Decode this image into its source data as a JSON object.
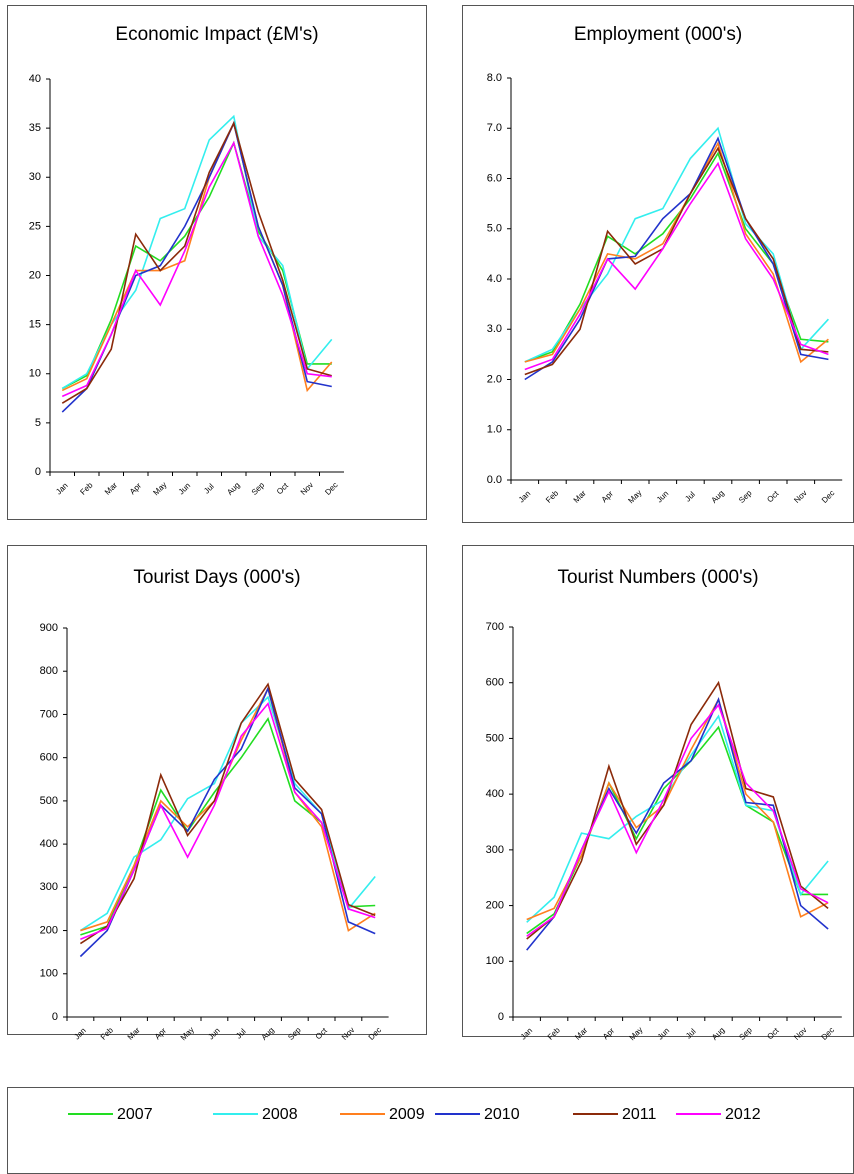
{
  "chart_data": [
    {
      "type": "line",
      "title": "Economic Impact (£M's)",
      "categories": [
        "Jan",
        "Feb",
        "Mar",
        "Apr",
        "May",
        "Jun",
        "Jul",
        "Aug",
        "Sep",
        "Oct",
        "Nov",
        "Dec"
      ],
      "ylim": [
        0,
        40
      ],
      "yticks": [
        0,
        5,
        10,
        15,
        20,
        25,
        30,
        35,
        40
      ],
      "series": [
        {
          "values": [
            8.5,
            9.8,
            15.5,
            23,
            21.5,
            24,
            28,
            33.5,
            24.5,
            20.5,
            11,
            11
          ]
        },
        {
          "values": [
            8.5,
            10,
            15,
            18.5,
            25.8,
            26.8,
            33.8,
            36.2,
            24,
            21,
            10.5,
            13.5
          ]
        },
        {
          "values": [
            8.3,
            9.5,
            15,
            20.5,
            20.5,
            21.5,
            30,
            35.5,
            25,
            19,
            8.3,
            11.2
          ]
        },
        {
          "values": [
            6.1,
            8.5,
            14,
            20,
            21,
            25,
            30,
            35.5,
            25,
            19,
            9.2,
            8.7
          ]
        },
        {
          "values": [
            7,
            8.5,
            12.5,
            24.2,
            20.5,
            23,
            30.5,
            35.5,
            26.5,
            19.5,
            10.5,
            9.8
          ]
        },
        {
          "values": [
            7.7,
            8.8,
            14,
            20.5,
            17,
            22.5,
            29,
            33.5,
            24,
            18,
            10,
            9.7
          ]
        }
      ]
    },
    {
      "type": "line",
      "title": "Employment (000's)",
      "categories": [
        "Jan",
        "Feb",
        "Mar",
        "Apr",
        "May",
        "Jun",
        "Jul",
        "Aug",
        "Sep",
        "Oct",
        "Nov",
        "Dec"
      ],
      "ylim": [
        0,
        8
      ],
      "yticks": [
        {
          "value": 0,
          "label": "0.0"
        },
        {
          "value": 1,
          "label": "1.0"
        },
        {
          "value": 2,
          "label": "2.0"
        },
        {
          "value": 3,
          "label": "3.0"
        },
        {
          "value": 4,
          "label": "4.0"
        },
        {
          "value": 5,
          "label": "5.0"
        },
        {
          "value": 6,
          "label": "6.0"
        },
        {
          "value": 7,
          "label": "7.0"
        },
        {
          "value": 8,
          "label": "8.0"
        }
      ],
      "series": [
        {
          "values": [
            2.35,
            2.55,
            3.5,
            4.85,
            4.5,
            4.9,
            5.6,
            6.5,
            5.0,
            4.3,
            2.8,
            2.75
          ]
        },
        {
          "values": [
            2.35,
            2.6,
            3.4,
            4.1,
            5.2,
            5.4,
            6.4,
            7.0,
            5.1,
            4.5,
            2.6,
            3.2
          ]
        },
        {
          "values": [
            2.35,
            2.5,
            3.4,
            4.5,
            4.4,
            4.7,
            5.7,
            6.7,
            4.9,
            4.1,
            2.35,
            2.8
          ]
        },
        {
          "values": [
            2.0,
            2.35,
            3.2,
            4.4,
            4.45,
            5.2,
            5.7,
            6.8,
            5.2,
            4.3,
            2.5,
            2.4
          ]
        },
        {
          "values": [
            2.1,
            2.3,
            3.0,
            4.95,
            4.3,
            4.6,
            5.7,
            6.6,
            5.2,
            4.4,
            2.6,
            2.55
          ]
        },
        {
          "values": [
            2.2,
            2.4,
            3.3,
            4.4,
            3.8,
            4.6,
            5.5,
            6.3,
            4.8,
            4.0,
            2.7,
            2.5
          ]
        }
      ]
    },
    {
      "type": "line",
      "title": "Tourist Days (000's)",
      "categories": [
        "Jan",
        "Feb",
        "Mar",
        "Apr",
        "May",
        "Jun",
        "Jul",
        "Aug",
        "Sep",
        "Oct",
        "Nov",
        "Dec"
      ],
      "ylim": [
        0,
        900
      ],
      "yticks": [
        0,
        100,
        200,
        300,
        400,
        500,
        600,
        700,
        800,
        900
      ],
      "series": [
        {
          "values": [
            190,
            210,
            350,
            525,
            430,
            520,
            600,
            690,
            500,
            450,
            255,
            258
          ]
        },
        {
          "values": [
            200,
            240,
            370,
            410,
            505,
            540,
            680,
            740,
            540,
            470,
            250,
            325
          ]
        },
        {
          "values": [
            200,
            220,
            350,
            500,
            440,
            500,
            640,
            760,
            520,
            440,
            200,
            240
          ]
        },
        {
          "values": [
            140,
            200,
            340,
            490,
            430,
            550,
            620,
            760,
            530,
            470,
            220,
            193
          ]
        },
        {
          "values": [
            170,
            210,
            320,
            560,
            420,
            500,
            680,
            770,
            550,
            480,
            260,
            235
          ]
        },
        {
          "values": [
            180,
            205,
            340,
            490,
            370,
            490,
            650,
            725,
            520,
            450,
            250,
            230
          ]
        }
      ]
    },
    {
      "type": "line",
      "title": "Tourist Numbers (000's)",
      "categories": [
        "Jan",
        "Feb",
        "Mar",
        "Apr",
        "May",
        "Jun",
        "Jul",
        "Aug",
        "Sep",
        "Oct",
        "Nov",
        "Dec"
      ],
      "ylim": [
        0,
        700
      ],
      "yticks": [
        0,
        100,
        200,
        300,
        400,
        500,
        600,
        700
      ],
      "series": [
        {
          "values": [
            150,
            185,
            290,
            420,
            320,
            410,
            460,
            520,
            380,
            350,
            220,
            220
          ]
        },
        {
          "values": [
            170,
            215,
            330,
            320,
            360,
            390,
            470,
            540,
            380,
            370,
            220,
            280
          ]
        },
        {
          "values": [
            175,
            195,
            290,
            420,
            340,
            380,
            480,
            570,
            400,
            350,
            180,
            205
          ]
        },
        {
          "values": [
            120,
            180,
            300,
            410,
            330,
            420,
            460,
            570,
            385,
            380,
            200,
            158
          ]
        },
        {
          "values": [
            140,
            180,
            280,
            450,
            310,
            380,
            525,
            600,
            410,
            395,
            235,
            195
          ]
        },
        {
          "values": [
            145,
            180,
            300,
            405,
            295,
            390,
            500,
            560,
            420,
            370,
            230,
            205
          ]
        }
      ]
    }
  ],
  "legend": {
    "series": [
      {
        "name": "2007",
        "color": "#22dd22"
      },
      {
        "name": "2008",
        "color": "#33eeee"
      },
      {
        "name": "2009",
        "color": "#ff7f1e"
      },
      {
        "name": "2010",
        "color": "#2233cc"
      },
      {
        "name": "2011",
        "color": "#8b2a0a"
      },
      {
        "name": "2012",
        "color": "#ff00ff"
      }
    ]
  }
}
